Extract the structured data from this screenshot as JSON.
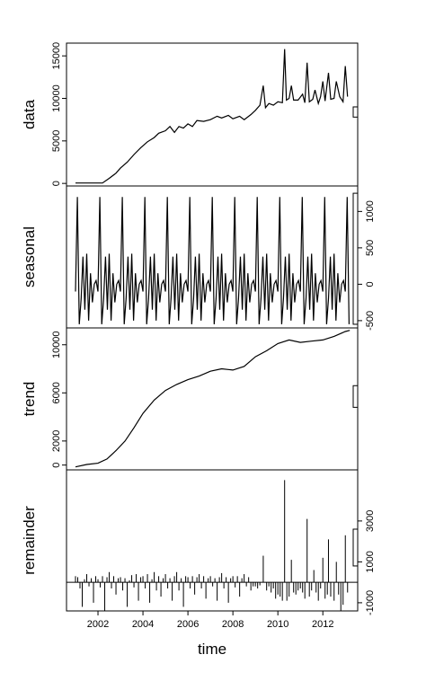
{
  "chart_data": {
    "type": "line",
    "xlabel": "time",
    "xlim": [
      2000.6,
      2013.55
    ],
    "x_ticks": [
      2002,
      2004,
      2006,
      2008,
      2010,
      2012
    ],
    "panels": [
      {
        "name": "data",
        "label": "data",
        "ylim": [
          -300,
          16500
        ],
        "y_ticks": [
          0,
          5000,
          10000,
          15000
        ],
        "y_axis_side": "left",
        "style": "line",
        "scale_bar": {
          "y0": 7800,
          "y1": 9000
        },
        "points": [
          [
            2001.0,
            50
          ],
          [
            2002.2,
            50
          ],
          [
            2002.5,
            600
          ],
          [
            2002.8,
            1200
          ],
          [
            2003.0,
            1800
          ],
          [
            2003.3,
            2500
          ],
          [
            2003.6,
            3400
          ],
          [
            2003.9,
            4200
          ],
          [
            2004.2,
            4900
          ],
          [
            2004.5,
            5400
          ],
          [
            2004.7,
            5900
          ],
          [
            2005.0,
            6200
          ],
          [
            2005.2,
            6700
          ],
          [
            2005.4,
            6000
          ],
          [
            2005.6,
            6700
          ],
          [
            2005.8,
            6500
          ],
          [
            2006.0,
            7000
          ],
          [
            2006.2,
            6700
          ],
          [
            2006.4,
            7400
          ],
          [
            2006.7,
            7300
          ],
          [
            2007.0,
            7500
          ],
          [
            2007.3,
            7900
          ],
          [
            2007.5,
            7700
          ],
          [
            2007.8,
            8000
          ],
          [
            2008.0,
            7600
          ],
          [
            2008.3,
            7900
          ],
          [
            2008.5,
            7500
          ],
          [
            2008.8,
            8100
          ],
          [
            2009.0,
            8600
          ],
          [
            2009.2,
            9200
          ],
          [
            2009.35,
            11500
          ],
          [
            2009.45,
            8900
          ],
          [
            2009.6,
            9400
          ],
          [
            2009.8,
            9200
          ],
          [
            2010.0,
            9600
          ],
          [
            2010.2,
            9500
          ],
          [
            2010.3,
            15800
          ],
          [
            2010.38,
            9800
          ],
          [
            2010.5,
            10000
          ],
          [
            2010.6,
            11500
          ],
          [
            2010.7,
            9800
          ],
          [
            2010.9,
            9800
          ],
          [
            2011.1,
            10500
          ],
          [
            2011.2,
            9500
          ],
          [
            2011.3,
            14200
          ],
          [
            2011.4,
            9600
          ],
          [
            2011.55,
            9900
          ],
          [
            2011.65,
            11000
          ],
          [
            2011.8,
            9400
          ],
          [
            2011.9,
            10200
          ],
          [
            2012.0,
            12000
          ],
          [
            2012.1,
            9700
          ],
          [
            2012.25,
            13000
          ],
          [
            2012.35,
            9900
          ],
          [
            2012.5,
            10000
          ],
          [
            2012.6,
            12000
          ],
          [
            2012.75,
            10200
          ],
          [
            2012.9,
            9600
          ],
          [
            2013.0,
            13800
          ],
          [
            2013.1,
            10200
          ]
        ]
      },
      {
        "name": "seasonal",
        "label": "seasonal",
        "ylim": [
          -600,
          1350
        ],
        "y_ticks": [
          -500,
          0,
          500,
          1000
        ],
        "y_axis_side": "right",
        "style": "seasonal",
        "scale_bar": {
          "y0": -550,
          "y1": 1250
        },
        "cycle": [
          -100,
          1200,
          -550,
          -200,
          380,
          -350,
          420,
          -500,
          150,
          -250,
          0,
          50
        ],
        "start": 2001.0,
        "end": 2013.2
      },
      {
        "name": "trend",
        "label": "trend",
        "ylim": [
          -400,
          11400
        ],
        "y_ticks": [
          0,
          2000,
          6000,
          10000
        ],
        "y_axis_side": "left",
        "style": "line",
        "scale_bar": {
          "y0": 4800,
          "y1": 6600
        },
        "points": [
          [
            2001.0,
            -150
          ],
          [
            2001.5,
            50
          ],
          [
            2002.0,
            150
          ],
          [
            2002.4,
            500
          ],
          [
            2002.8,
            1200
          ],
          [
            2003.2,
            2000
          ],
          [
            2003.6,
            3100
          ],
          [
            2004.0,
            4300
          ],
          [
            2004.5,
            5400
          ],
          [
            2005.0,
            6200
          ],
          [
            2005.5,
            6700
          ],
          [
            2006.0,
            7100
          ],
          [
            2006.5,
            7400
          ],
          [
            2007.0,
            7800
          ],
          [
            2007.5,
            8000
          ],
          [
            2008.0,
            7900
          ],
          [
            2008.5,
            8200
          ],
          [
            2009.0,
            9000
          ],
          [
            2009.5,
            9500
          ],
          [
            2010.0,
            10100
          ],
          [
            2010.5,
            10400
          ],
          [
            2011.0,
            10200
          ],
          [
            2011.5,
            10300
          ],
          [
            2012.0,
            10400
          ],
          [
            2012.5,
            10700
          ],
          [
            2013.0,
            11100
          ],
          [
            2013.2,
            11200
          ]
        ]
      },
      {
        "name": "remainder",
        "label": "remainder",
        "ylim": [
          -1400,
          5500
        ],
        "y_ticks": [
          -1000,
          1000,
          3000
        ],
        "y_axis_side": "right",
        "style": "bars",
        "scale_bar": {
          "y0": 800,
          "y1": 2600
        },
        "bars": [
          [
            2001.0,
            300
          ],
          [
            2001.1,
            250
          ],
          [
            2001.2,
            -300
          ],
          [
            2001.3,
            -1200
          ],
          [
            2001.4,
            150
          ],
          [
            2001.5,
            400
          ],
          [
            2001.6,
            -200
          ],
          [
            2001.7,
            200
          ],
          [
            2001.8,
            -1000
          ],
          [
            2001.9,
            300
          ],
          [
            2002.0,
            150
          ],
          [
            2002.1,
            -250
          ],
          [
            2002.2,
            300
          ],
          [
            2002.3,
            -1400
          ],
          [
            2002.4,
            250
          ],
          [
            2002.5,
            500
          ],
          [
            2002.6,
            -300
          ],
          [
            2002.7,
            300
          ],
          [
            2002.8,
            -600
          ],
          [
            2002.9,
            200
          ],
          [
            2003.0,
            250
          ],
          [
            2003.1,
            -400
          ],
          [
            2003.2,
            200
          ],
          [
            2003.3,
            -1200
          ],
          [
            2003.4,
            100
          ],
          [
            2003.5,
            350
          ],
          [
            2003.6,
            -250
          ],
          [
            2003.7,
            400
          ],
          [
            2003.8,
            -900
          ],
          [
            2003.9,
            250
          ],
          [
            2004.0,
            300
          ],
          [
            2004.1,
            -300
          ],
          [
            2004.2,
            400
          ],
          [
            2004.3,
            -1000
          ],
          [
            2004.4,
            150
          ],
          [
            2004.5,
            500
          ],
          [
            2004.6,
            -400
          ],
          [
            2004.7,
            300
          ],
          [
            2004.8,
            -700
          ],
          [
            2004.9,
            200
          ],
          [
            2005.0,
            400
          ],
          [
            2005.1,
            -300
          ],
          [
            2005.2,
            200
          ],
          [
            2005.3,
            -900
          ],
          [
            2005.4,
            300
          ],
          [
            2005.5,
            500
          ],
          [
            2005.6,
            -400
          ],
          [
            2005.7,
            200
          ],
          [
            2005.8,
            -1200
          ],
          [
            2005.9,
            300
          ],
          [
            2006.0,
            250
          ],
          [
            2006.1,
            -300
          ],
          [
            2006.2,
            300
          ],
          [
            2006.3,
            -600
          ],
          [
            2006.4,
            250
          ],
          [
            2006.5,
            400
          ],
          [
            2006.6,
            -300
          ],
          [
            2006.7,
            300
          ],
          [
            2006.8,
            -800
          ],
          [
            2006.9,
            200
          ],
          [
            2007.0,
            300
          ],
          [
            2007.1,
            -200
          ],
          [
            2007.2,
            200
          ],
          [
            2007.3,
            -900
          ],
          [
            2007.4,
            250
          ],
          [
            2007.5,
            450
          ],
          [
            2007.6,
            -300
          ],
          [
            2007.7,
            250
          ],
          [
            2007.8,
            -1000
          ],
          [
            2007.9,
            200
          ],
          [
            2008.0,
            300
          ],
          [
            2008.1,
            -250
          ],
          [
            2008.2,
            300
          ],
          [
            2008.3,
            -700
          ],
          [
            2008.4,
            200
          ],
          [
            2008.5,
            400
          ],
          [
            2008.6,
            -200
          ],
          [
            2008.7,
            250
          ],
          [
            2008.8,
            -400
          ],
          [
            2008.9,
            -200
          ],
          [
            2009.0,
            -200
          ],
          [
            2009.1,
            -300
          ],
          [
            2009.2,
            -150
          ],
          [
            2009.35,
            1300
          ],
          [
            2009.5,
            -400
          ],
          [
            2009.6,
            -200
          ],
          [
            2009.7,
            -500
          ],
          [
            2009.8,
            -300
          ],
          [
            2009.9,
            -800
          ],
          [
            2010.0,
            -600
          ],
          [
            2010.1,
            -700
          ],
          [
            2010.2,
            -900
          ],
          [
            2010.3,
            5000
          ],
          [
            2010.4,
            -900
          ],
          [
            2010.5,
            -700
          ],
          [
            2010.6,
            1100
          ],
          [
            2010.7,
            -500
          ],
          [
            2010.8,
            -600
          ],
          [
            2010.9,
            -400
          ],
          [
            2011.0,
            -300
          ],
          [
            2011.1,
            -500
          ],
          [
            2011.2,
            -800
          ],
          [
            2011.3,
            3100
          ],
          [
            2011.4,
            -700
          ],
          [
            2011.5,
            -400
          ],
          [
            2011.6,
            600
          ],
          [
            2011.7,
            -500
          ],
          [
            2011.8,
            -900
          ],
          [
            2011.9,
            -300
          ],
          [
            2012.0,
            1200
          ],
          [
            2012.1,
            -800
          ],
          [
            2012.2,
            -600
          ],
          [
            2012.25,
            2100
          ],
          [
            2012.35,
            -700
          ],
          [
            2012.5,
            -900
          ],
          [
            2012.6,
            1000
          ],
          [
            2012.7,
            -600
          ],
          [
            2012.8,
            -1400
          ],
          [
            2012.9,
            -1100
          ],
          [
            2013.0,
            2300
          ],
          [
            2013.1,
            -500
          ]
        ]
      }
    ],
    "grid": false,
    "legend": "none"
  }
}
